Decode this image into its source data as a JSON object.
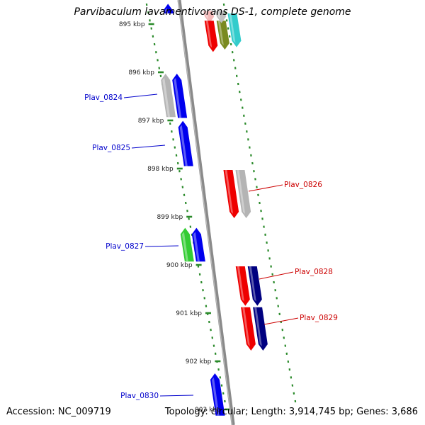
{
  "header": {
    "title": "Parvibaculum lavamentivorans DS-1, complete genome"
  },
  "footer": {
    "accession": "Accession: NC_009719",
    "summary": "Topology: circular; Length: 3,914,745 bp; Genes: 3,686"
  },
  "axis": {
    "unit": "kbp",
    "ticks": [
      {
        "kbp": 895,
        "label": "895 kbp"
      },
      {
        "kbp": 896,
        "label": "896 kbp"
      },
      {
        "kbp": 897,
        "label": "897 kbp"
      },
      {
        "kbp": 898,
        "label": "898 kbp"
      },
      {
        "kbp": 899,
        "label": "899 kbp"
      },
      {
        "kbp": 900,
        "label": "900 kbp"
      },
      {
        "kbp": 901,
        "label": "901 kbp"
      },
      {
        "kbp": 902,
        "label": "902 kbp"
      },
      {
        "kbp": 903,
        "label": "903 kbp"
      }
    ]
  },
  "colors": {
    "forward_label": "#0000cc",
    "reverse_label": "#cc0000",
    "tick": "#2a8a2a",
    "backbone": "#8a8a8a"
  },
  "labels": [
    {
      "gene": "Plav_0824",
      "text": "Plav_0824"
    },
    {
      "gene": "Plav_0825",
      "text": "Plav_0825"
    },
    {
      "gene": "Plav_0826",
      "text": "Plav_0826"
    },
    {
      "gene": "Plav_0827",
      "text": "Plav_0827"
    },
    {
      "gene": "Plav_0828",
      "text": "Plav_0828"
    },
    {
      "gene": "Plav_0829",
      "text": "Plav_0829"
    },
    {
      "gene": "Plav_0830",
      "text": "Plav_0830"
    }
  ],
  "genes": [
    {
      "id": "g-top-blue",
      "start": 894.55,
      "end": 894.75,
      "strand": "+",
      "lane": 1,
      "color": "#0000ee"
    },
    {
      "id": "g-top-pink",
      "start": 894.7,
      "end": 894.95,
      "strand": "-",
      "lane": 1,
      "color": "#f4b8b8"
    },
    {
      "id": "g-top-red",
      "start": 894.9,
      "end": 895.55,
      "strand": "-",
      "lane": 1,
      "color": "#ee0000"
    },
    {
      "id": "g-top-olive",
      "start": 894.9,
      "end": 895.5,
      "strand": "-",
      "lane": 2,
      "color": "#7a8a20"
    },
    {
      "id": "g-top-cyan",
      "start": 894.75,
      "end": 895.45,
      "strand": "-",
      "lane": 3,
      "color": "#33cccc"
    },
    {
      "id": "g-top-silver",
      "start": 894.7,
      "end": 894.95,
      "strand": "-",
      "lane": 2,
      "color": "#c0c0c0"
    },
    {
      "id": "g-grey-896",
      "start": 896.0,
      "end": 896.9,
      "strand": "+",
      "lane": 2,
      "color": "#b4b4b4"
    },
    {
      "id": "g-0824",
      "start": 896.0,
      "end": 896.92,
      "strand": "+",
      "lane": 1,
      "color": "#0000ee"
    },
    {
      "id": "g-0825",
      "start": 896.98,
      "end": 897.92,
      "strand": "+",
      "lane": 1,
      "color": "#0000ee"
    },
    {
      "id": "g-0826",
      "start": 898.0,
      "end": 899.0,
      "strand": "-",
      "lane": 1,
      "color": "#ee0000"
    },
    {
      "id": "g-grey-898",
      "start": 898.0,
      "end": 899.0,
      "strand": "-",
      "lane": 2,
      "color": "#b4b4b4"
    },
    {
      "id": "g-0827a",
      "start": 899.2,
      "end": 899.9,
      "strand": "+",
      "lane": 2,
      "color": "#33cc33"
    },
    {
      "id": "g-0827",
      "start": 899.2,
      "end": 899.9,
      "strand": "+",
      "lane": 1,
      "color": "#0000ee"
    },
    {
      "id": "g-0828",
      "start": 900.0,
      "end": 900.82,
      "strand": "-",
      "lane": 1,
      "color": "#ee0000"
    },
    {
      "id": "g-navy-900",
      "start": 900.0,
      "end": 900.82,
      "strand": "-",
      "lane": 2,
      "color": "#000080"
    },
    {
      "id": "g-0829",
      "start": 900.85,
      "end": 901.75,
      "strand": "-",
      "lane": 1,
      "color": "#ee0000"
    },
    {
      "id": "g-navy-901",
      "start": 900.85,
      "end": 901.75,
      "strand": "-",
      "lane": 2,
      "color": "#000080"
    },
    {
      "id": "g-0830",
      "start": 902.22,
      "end": 903.1,
      "strand": "+",
      "lane": 1,
      "color": "#0000ee"
    }
  ]
}
